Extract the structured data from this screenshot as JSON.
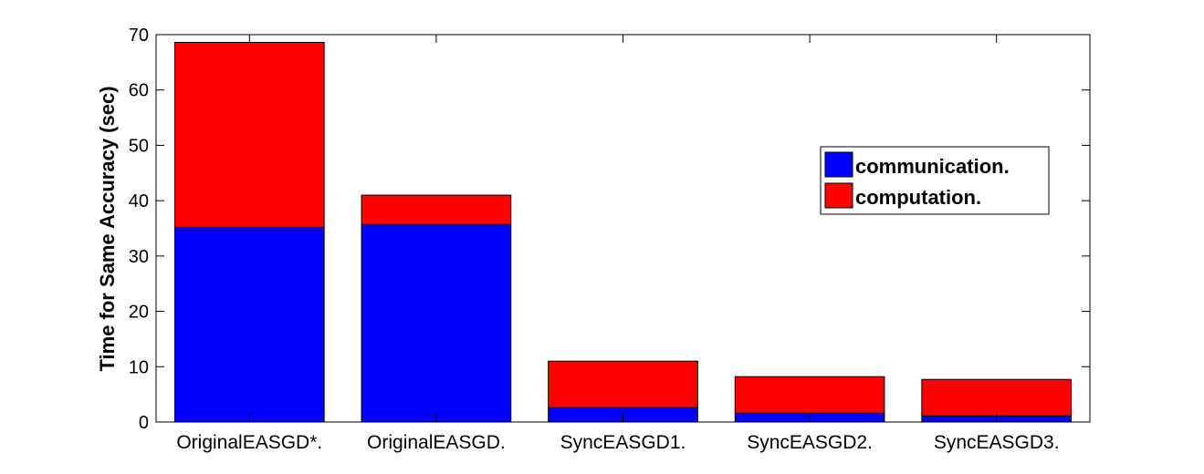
{
  "chart_data": {
    "type": "bar",
    "stacked": true,
    "title": "",
    "xlabel": "",
    "ylabel": "Time for Same Accuracy (sec)",
    "ylim": [
      0,
      70
    ],
    "yticks": [
      0,
      10,
      20,
      30,
      40,
      50,
      60,
      70
    ],
    "categories": [
      "OriginalEASGD*.",
      "OriginalEASGD.",
      "SyncEASGD1.",
      "SyncEASGD2.",
      "SyncEASGD3."
    ],
    "series": [
      {
        "name": "communication.",
        "color": "#0000ff",
        "values": [
          35.2,
          35.7,
          2.6,
          1.6,
          1.1
        ]
      },
      {
        "name": "computation.",
        "color": "#ff0000",
        "values": [
          33.4,
          5.3,
          8.4,
          6.6,
          6.6
        ]
      }
    ],
    "grid": false,
    "legend_position": "right"
  }
}
